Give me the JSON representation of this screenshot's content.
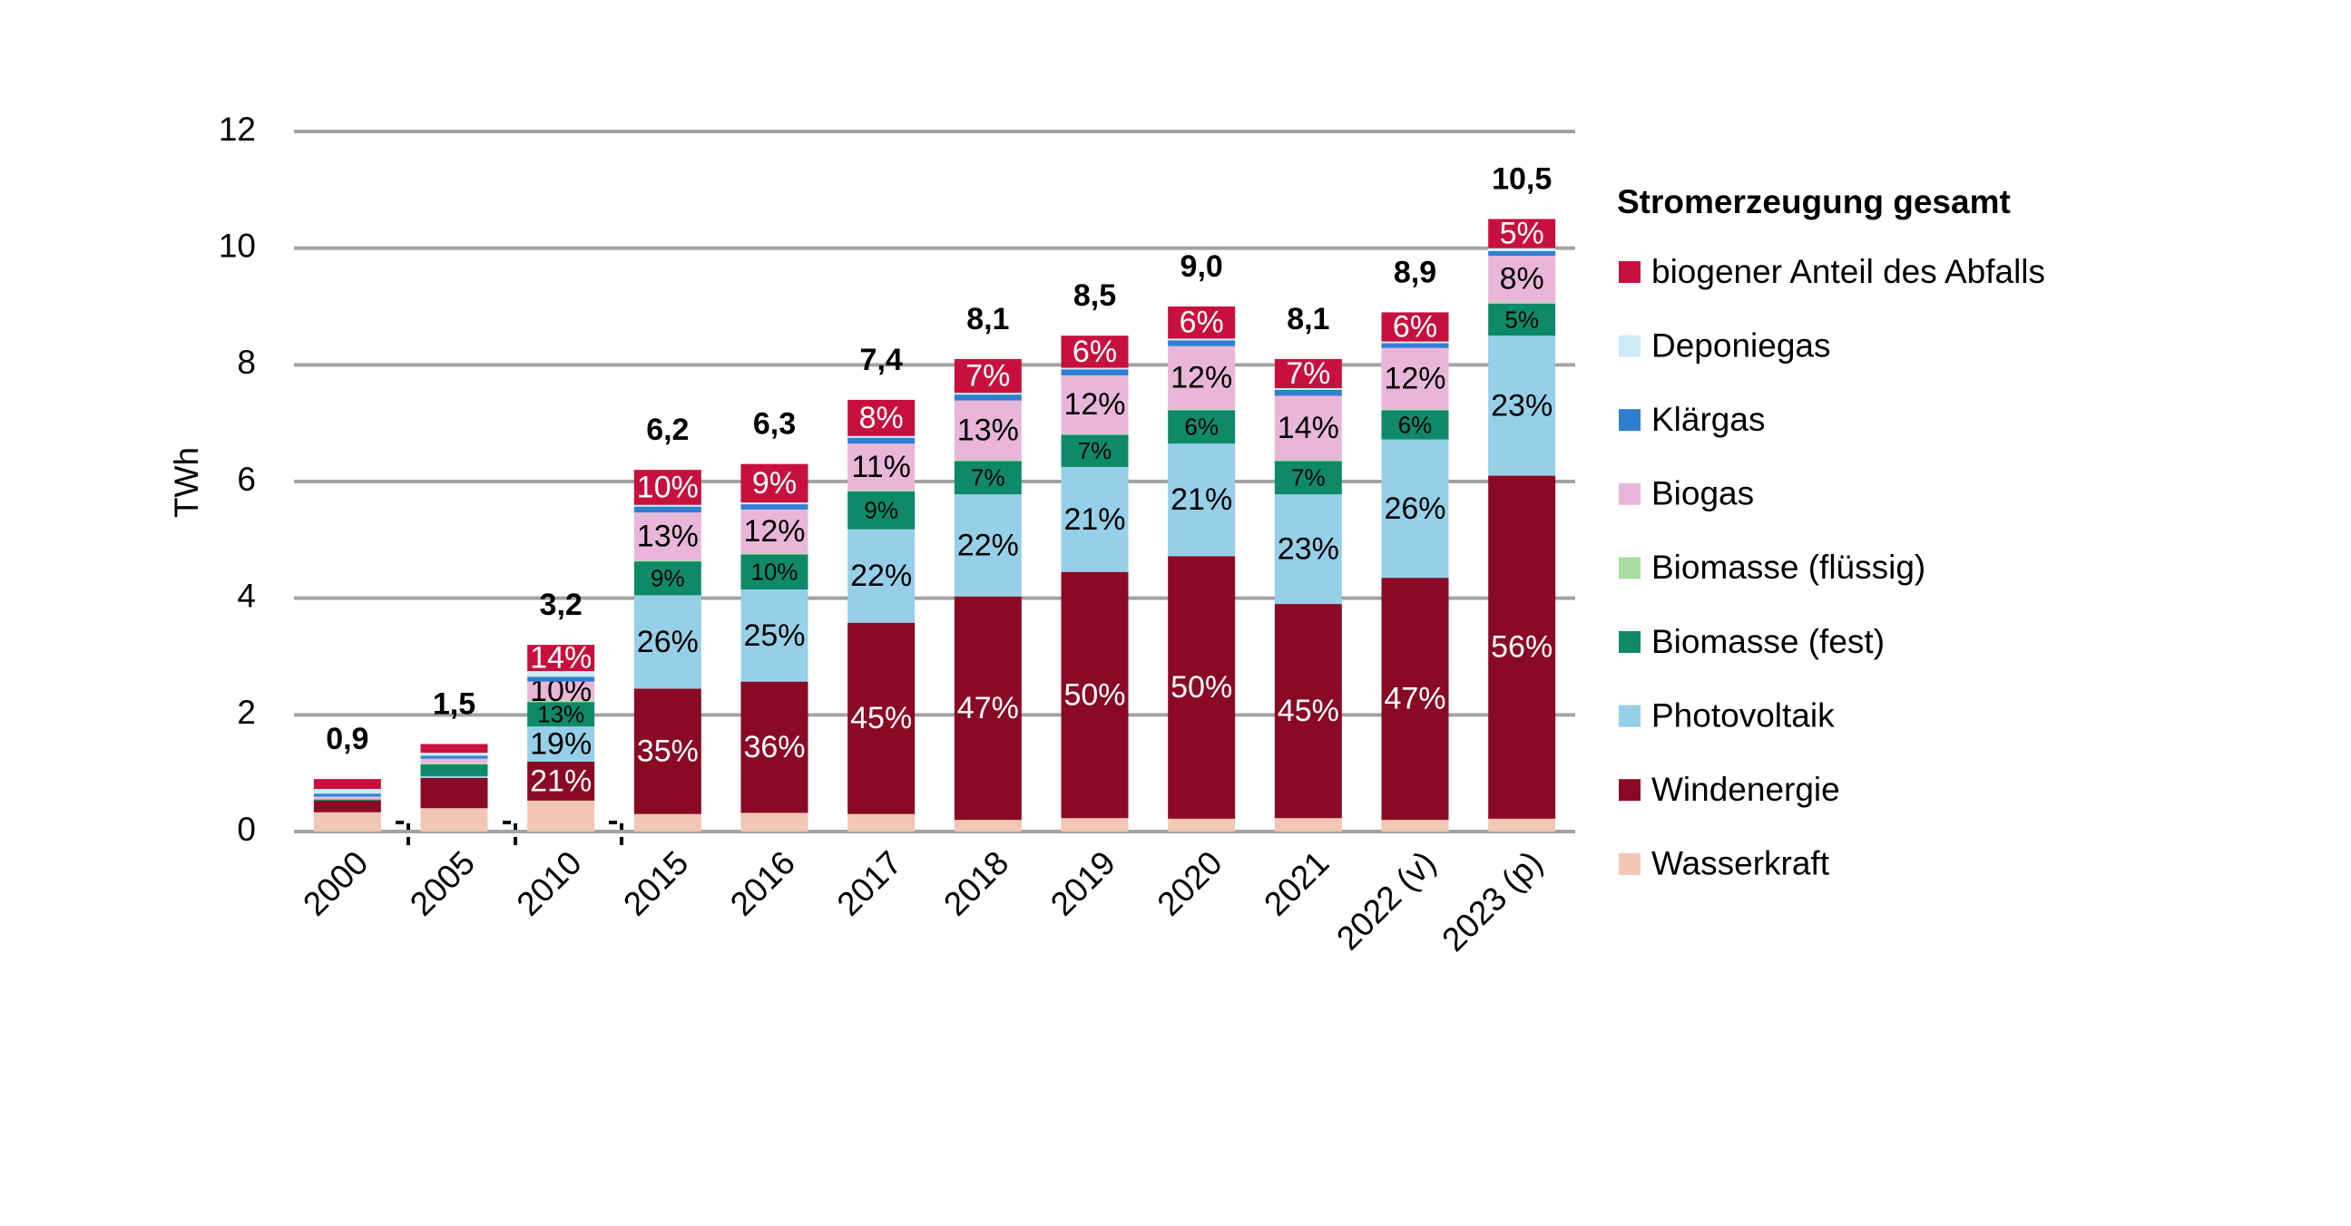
{
  "chart_data": {
    "type": "stacked-bar",
    "y_label": "TWh",
    "legend_title": "Stromerzeugung gesamt",
    "categories": [
      "2000",
      "2005",
      "2010",
      "2015",
      "2016",
      "2017",
      "2018",
      "2019",
      "2020",
      "2021",
      "2022 (v)",
      "2023 (p)"
    ],
    "ylim": [
      0,
      12
    ],
    "yticks": [
      0,
      2,
      4,
      6,
      8,
      10,
      12
    ],
    "grid": true,
    "legend": "right",
    "totals": [
      0.9,
      1.5,
      3.2,
      6.2,
      6.3,
      7.4,
      8.1,
      8.5,
      9.0,
      8.1,
      8.9,
      10.5
    ],
    "total_labels": [
      "0,9",
      "1,5",
      "3,2",
      "6,2",
      "6,3",
      "7,4",
      "8,1",
      "8,5",
      "9,0",
      "8,1",
      "8,9",
      "10,5"
    ],
    "series": [
      {
        "name": "Wasserkraft",
        "color": "#f2c6b4",
        "label_color": "#000000",
        "values": [
          0.33,
          0.4,
          0.53,
          0.3,
          0.32,
          0.3,
          0.2,
          0.23,
          0.22,
          0.23,
          0.2,
          0.22
        ]
      },
      {
        "name": "Windenergie",
        "color": "#8a0a26",
        "label_color": "#ffffff",
        "values": [
          0.2,
          0.52,
          0.67,
          2.15,
          2.25,
          3.28,
          3.83,
          4.22,
          4.5,
          3.67,
          4.15,
          5.88
        ],
        "share_labels": [
          null,
          null,
          "21%",
          "35%",
          "36%",
          "45%",
          "47%",
          "50%",
          "50%",
          "45%",
          "47%",
          "56%"
        ]
      },
      {
        "name": "Photovoltaik",
        "color": "#95d0e8",
        "label_color": "#000000",
        "values": [
          0.0,
          0.03,
          0.6,
          1.6,
          1.58,
          1.6,
          1.75,
          1.8,
          1.93,
          1.88,
          2.37,
          2.4
        ],
        "share_labels": [
          null,
          null,
          "19%",
          "26%",
          "25%",
          "22%",
          "22%",
          "21%",
          "21%",
          "23%",
          "26%",
          "23%"
        ]
      },
      {
        "name": "Biomasse (fest)",
        "color": "#0e8a69",
        "label_color": "#000000",
        "values": [
          0.02,
          0.2,
          0.42,
          0.58,
          0.6,
          0.65,
          0.57,
          0.55,
          0.57,
          0.57,
          0.5,
          0.55
        ],
        "share_labels": [
          null,
          null,
          "13%",
          "9%",
          "10%",
          "9%",
          "7%",
          "7%",
          "6%",
          "7%",
          "6%",
          "5%"
        ]
      },
      {
        "name": "Biomasse (flüssig)",
        "color": "#a9dea1",
        "label_color": "#000000",
        "values": [
          0.0,
          0.02,
          0.03,
          0.02,
          0.02,
          0.02,
          0.02,
          0.02,
          0.02,
          0.02,
          0.02,
          0.02
        ]
      },
      {
        "name": "Biogas",
        "color": "#e9b6da",
        "label_color": "#000000",
        "values": [
          0.05,
          0.08,
          0.32,
          0.82,
          0.75,
          0.8,
          1.02,
          1.0,
          1.08,
          1.1,
          1.05,
          0.8
        ],
        "share_labels": [
          null,
          null,
          "10%",
          "13%",
          "12%",
          "11%",
          "13%",
          "12%",
          "12%",
          "14%",
          "12%",
          "8%"
        ]
      },
      {
        "name": "Klärgas",
        "color": "#2f7fd0",
        "label_color": "#000000",
        "values": [
          0.05,
          0.05,
          0.08,
          0.1,
          0.09,
          0.1,
          0.1,
          0.1,
          0.1,
          0.1,
          0.08,
          0.08
        ]
      },
      {
        "name": "Deponiegas",
        "color": "#cdebf6",
        "label_color": "#000000",
        "values": [
          0.08,
          0.05,
          0.1,
          0.03,
          0.03,
          0.03,
          0.03,
          0.03,
          0.03,
          0.03,
          0.03,
          0.05
        ]
      },
      {
        "name": "biogener Anteil des Abfalls",
        "color": "#c8103e",
        "label_color": "#ffffff",
        "values": [
          0.17,
          0.15,
          0.45,
          0.6,
          0.66,
          0.62,
          0.58,
          0.55,
          0.55,
          0.5,
          0.5,
          0.5
        ],
        "share_labels": [
          null,
          null,
          "14%",
          "10%",
          "9%",
          "8%",
          "7%",
          "6%",
          "6%",
          "7%",
          "6%",
          "5%"
        ]
      }
    ]
  }
}
